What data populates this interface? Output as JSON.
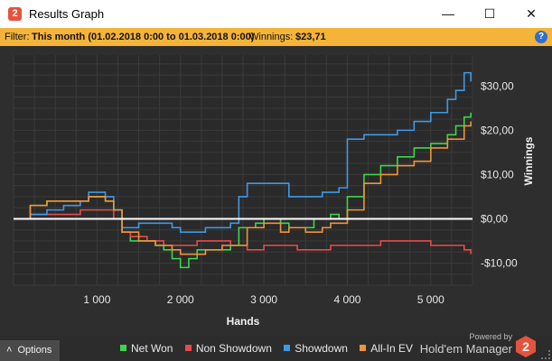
{
  "window": {
    "title": "Results Graph",
    "minimize_glyph": "—",
    "maximize_glyph": "☐",
    "close_glyph": "✕",
    "app_icon_label": "2"
  },
  "filter": {
    "label": "Filter:",
    "value": "This month (01.02.2018 0:00 to 01.03.2018 0:00)",
    "winnings_label": "Winnings:",
    "winnings_value": "$23,71",
    "help_glyph": "?"
  },
  "footer": {
    "options_label": "Options",
    "options_glyph": "˄",
    "powered_by": "Powered by",
    "brand": "Hold'em Manager",
    "brand_logo": "2"
  },
  "colors": {
    "net_won": "#3cd64a",
    "non_showdown": "#e84a4a",
    "showdown": "#3e9ae6",
    "all_in_ev": "#f2933a",
    "zero_line": "#ffffff",
    "grid": "#3b3b3b"
  },
  "chart_data": {
    "type": "line",
    "xlabel": "Hands",
    "ylabel": "Winnings",
    "xlim": [
      0,
      5500
    ],
    "ylim": [
      -15,
      37
    ],
    "x_ticks": [
      1000,
      2000,
      3000,
      4000,
      5000
    ],
    "x_tick_labels": [
      "1 000",
      "2 000",
      "3 000",
      "4 000",
      "5 000"
    ],
    "y_ticks": [
      -10,
      0,
      10,
      20,
      30
    ],
    "y_tick_labels": [
      "-$10,00",
      "$0,00",
      "$10,00",
      "$20,00",
      "$30,00"
    ],
    "grid": true,
    "legend_position": "bottom",
    "series": [
      {
        "name": "Net Won",
        "color_key": "net_won",
        "x": [
          0,
          200,
          400,
          600,
          800,
          900,
          1000,
          1100,
          1200,
          1300,
          1400,
          1500,
          1700,
          1800,
          1900,
          2000,
          2100,
          2200,
          2400,
          2600,
          2700,
          2800,
          2900,
          3000,
          3200,
          3300,
          3400,
          3600,
          3800,
          3900,
          4000,
          4200,
          4400,
          4600,
          4800,
          5000,
          5200,
          5300,
          5400,
          5480
        ],
        "y": [
          0,
          3,
          4,
          4,
          4,
          5,
          5,
          4,
          2,
          -3,
          -5,
          -5,
          -6,
          -7,
          -9,
          -11,
          -9,
          -7,
          -7,
          -6,
          -2,
          -2,
          -1,
          0,
          -1,
          -2,
          -2,
          0,
          1,
          0,
          5,
          10,
          12,
          14,
          16,
          17,
          19,
          21,
          23,
          24
        ]
      },
      {
        "name": "Non Showdown",
        "color_key": "non_showdown",
        "x": [
          0,
          200,
          400,
          600,
          800,
          1000,
          1200,
          1300,
          1400,
          1600,
          1800,
          2000,
          2200,
          2400,
          2600,
          2800,
          3000,
          3200,
          3400,
          3600,
          3800,
          4000,
          4200,
          4400,
          4600,
          4800,
          5000,
          5200,
          5400,
          5480
        ],
        "y": [
          0,
          1,
          1,
          1,
          2,
          2,
          0,
          -3,
          -4,
          -5,
          -6,
          -6,
          -5,
          -5,
          -6,
          -7,
          -6,
          -6,
          -7,
          -7,
          -6,
          -6,
          -6,
          -5,
          -5,
          -5,
          -6,
          -6,
          -7,
          -8
        ]
      },
      {
        "name": "Showdown",
        "color_key": "showdown",
        "x": [
          0,
          200,
          400,
          600,
          800,
          900,
          1000,
          1100,
          1200,
          1300,
          1500,
          1700,
          1900,
          2000,
          2100,
          2300,
          2500,
          2600,
          2700,
          2800,
          3000,
          3200,
          3300,
          3500,
          3700,
          3800,
          3900,
          4000,
          4200,
          4400,
          4600,
          4800,
          5000,
          5200,
          5300,
          5400,
          5480
        ],
        "y": [
          0,
          1,
          2,
          3,
          4,
          6,
          6,
          5,
          2,
          -2,
          -1,
          -1,
          -2,
          -3,
          -3,
          -2,
          -2,
          -1,
          5,
          8,
          8,
          8,
          5,
          5,
          6,
          6,
          7,
          18,
          19,
          19,
          20,
          22,
          24,
          27,
          29,
          33,
          31
        ]
      },
      {
        "name": "All-In EV",
        "color_key": "all_in_ev",
        "x": [
          0,
          200,
          400,
          600,
          800,
          900,
          1000,
          1100,
          1200,
          1300,
          1500,
          1700,
          1900,
          2000,
          2100,
          2300,
          2500,
          2700,
          2800,
          3000,
          3100,
          3200,
          3300,
          3500,
          3700,
          3800,
          3900,
          4000,
          4200,
          4400,
          4600,
          4800,
          5000,
          5200,
          5400,
          5480
        ],
        "y": [
          0,
          3,
          4,
          4,
          4,
          5,
          5,
          4,
          2,
          -3,
          -5,
          -6,
          -7,
          -8,
          -8,
          -7,
          -6,
          -6,
          -2,
          -1,
          -1,
          -3,
          -2,
          -3,
          -2,
          -1,
          -1,
          2,
          8,
          10,
          12,
          13,
          16,
          18,
          21,
          22
        ]
      }
    ]
  }
}
